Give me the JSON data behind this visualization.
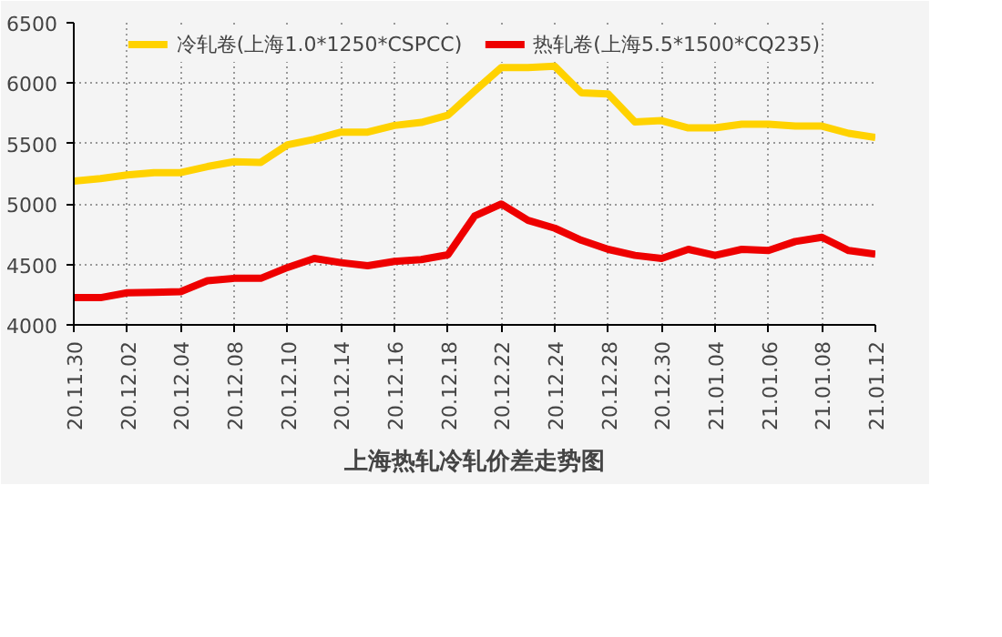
{
  "chart_data": {
    "type": "line",
    "title": "上海热轧冷轧价差走势图",
    "categories": [
      "20.11.30",
      null,
      "20.12.02",
      null,
      "20.12.04",
      null,
      "20.12.08",
      null,
      "20.12.10",
      null,
      "20.12.14",
      null,
      "20.12.16",
      null,
      "20.12.18",
      null,
      "20.12.22",
      null,
      "20.12.24",
      null,
      "20.12.28",
      null,
      "20.12.30",
      null,
      "21.01.04",
      null,
      "21.01.06",
      null,
      "21.01.08",
      null,
      "21.01.12"
    ],
    "series": [
      {
        "name": "冷轧卷(上海1.0*1250*CSPCC)",
        "color": "#ffd200",
        "values": [
          5190,
          5210,
          5240,
          5260,
          5260,
          5310,
          5350,
          5345,
          5490,
          5535,
          5595,
          5595,
          5650,
          5675,
          5735,
          5935,
          6130,
          6130,
          6140,
          5920,
          5910,
          5680,
          5690,
          5630,
          5630,
          5660,
          5660,
          5645,
          5645,
          5585,
          5550
        ]
      },
      {
        "name": "热轧卷(上海5.5*1500*CQ235)",
        "color": "#ee0000",
        "values": [
          4225,
          4225,
          4265,
          4270,
          4275,
          4365,
          4385,
          4385,
          4475,
          4550,
          4515,
          4490,
          4525,
          4540,
          4580,
          4900,
          5000,
          4865,
          4800,
          4700,
          4625,
          4575,
          4550,
          4625,
          4575,
          4625,
          4615,
          4690,
          4725,
          4615,
          4585
        ]
      }
    ],
    "ylim": [
      4000,
      6500
    ],
    "yticks": [
      4000,
      4500,
      5000,
      5500,
      6000,
      6500
    ],
    "grid": true,
    "legend": "top",
    "line_style": "solid",
    "marker": "none"
  }
}
